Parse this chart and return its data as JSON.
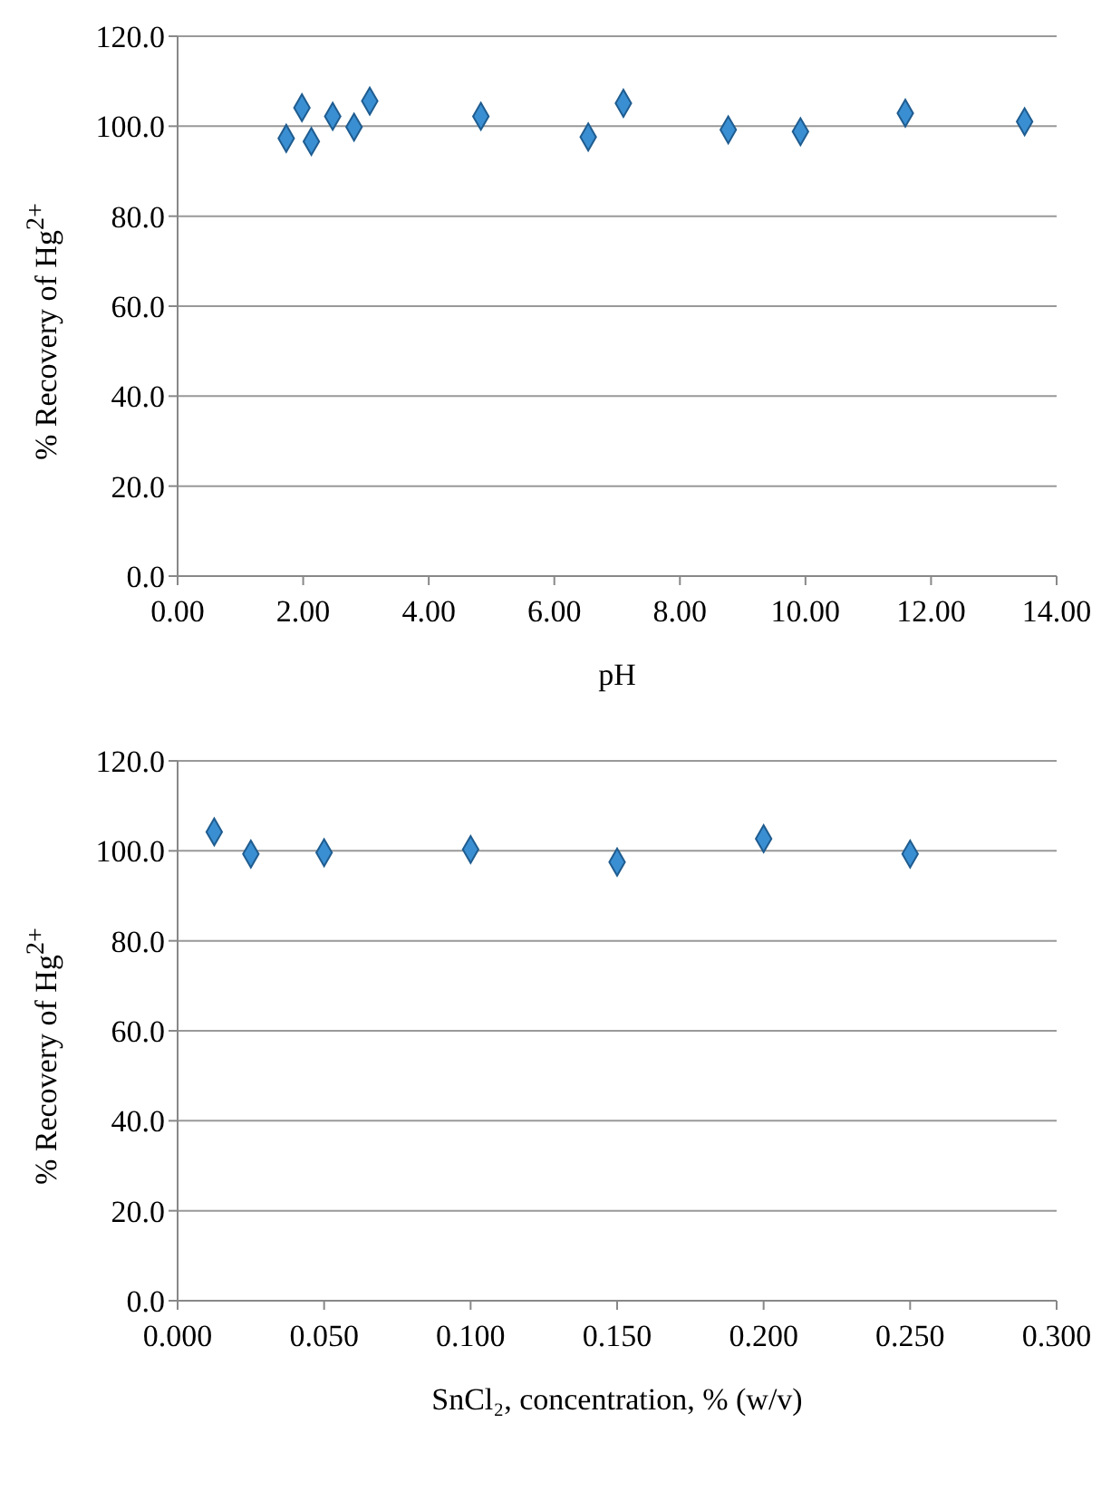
{
  "chart_data": [
    {
      "type": "scatter",
      "xlabel": "pH",
      "ylabel": "% Recovery of Hg$^{2+}$",
      "marker": "diamond",
      "grid": "y",
      "xlim": [
        0,
        14
      ],
      "xticks": [
        {
          "value": 0,
          "label": "0.00"
        },
        {
          "value": 2,
          "label": "2.00"
        },
        {
          "value": 4,
          "label": "4.00"
        },
        {
          "value": 6,
          "label": "6.00"
        },
        {
          "value": 8,
          "label": "8.00"
        },
        {
          "value": 10,
          "label": "10.00"
        },
        {
          "value": 12,
          "label": "12.00"
        },
        {
          "value": 14,
          "label": "14.00"
        }
      ],
      "ylim": [
        0,
        120
      ],
      "yticks": [
        {
          "value": 0,
          "label": "0.0"
        },
        {
          "value": 20,
          "label": "20.0"
        },
        {
          "value": 40,
          "label": "40.0"
        },
        {
          "value": 60,
          "label": "60.0"
        },
        {
          "value": 80,
          "label": "80.0"
        },
        {
          "value": 100,
          "label": "100.0"
        },
        {
          "value": 120,
          "label": "120.0"
        }
      ],
      "x": [
        1.73,
        1.98,
        2.13,
        2.47,
        2.81,
        3.06,
        4.83,
        6.54,
        7.1,
        8.77,
        9.92,
        11.59,
        13.49
      ],
      "series": [
        {
          "color": "#3a8fd2",
          "values": [
            97.3,
            104.1,
            96.6,
            102.2,
            99.8,
            105.6,
            102.2,
            97.6,
            105.1,
            99.2,
            98.8,
            102.9,
            101.0
          ]
        }
      ]
    },
    {
      "type": "scatter",
      "xlabel": "SnCl₂, concentration, % (w/v)",
      "ylabel": "% Recovery of Hg$^{2+}$",
      "marker": "diamond",
      "grid": "y",
      "xlim": [
        0,
        0.3
      ],
      "xticks": [
        {
          "value": 0,
          "label": "0.000"
        },
        {
          "value": 0.05,
          "label": "0.050"
        },
        {
          "value": 0.1,
          "label": "0.100"
        },
        {
          "value": 0.15,
          "label": "0.150"
        },
        {
          "value": 0.2,
          "label": "0.200"
        },
        {
          "value": 0.25,
          "label": "0.250"
        },
        {
          "value": 0.3,
          "label": "0.300"
        }
      ],
      "ylim": [
        0,
        120
      ],
      "yticks": [
        {
          "value": 0,
          "label": "0.0"
        },
        {
          "value": 20,
          "label": "20.0"
        },
        {
          "value": 40,
          "label": "40.0"
        },
        {
          "value": 60,
          "label": "60.0"
        },
        {
          "value": 80,
          "label": "80.0"
        },
        {
          "value": 100,
          "label": "100.0"
        },
        {
          "value": 120,
          "label": "120.0"
        }
      ],
      "x": [
        0.0125,
        0.025,
        0.05,
        0.1,
        0.15,
        0.2,
        0.25
      ],
      "series": [
        {
          "color": "#3a8fd2",
          "values": [
            104.2,
            99.3,
            99.6,
            100.3,
            97.5,
            102.7,
            99.3
          ]
        }
      ]
    }
  ]
}
